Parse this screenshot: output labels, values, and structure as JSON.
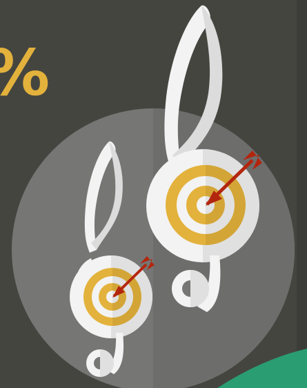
{
  "headline_fragment": "%",
  "colors": {
    "background": "#454540",
    "circle": "#767675",
    "accent_text": "#e3b23c",
    "clef": "#f3f3f3",
    "target_gold": "#e3b23c",
    "target_white": "#f3f3f3",
    "arrow": "#b3260e",
    "green_corner": "#2a9d72"
  },
  "icons": [
    "treble-clef-icon",
    "target-icon",
    "arrow-icon"
  ]
}
